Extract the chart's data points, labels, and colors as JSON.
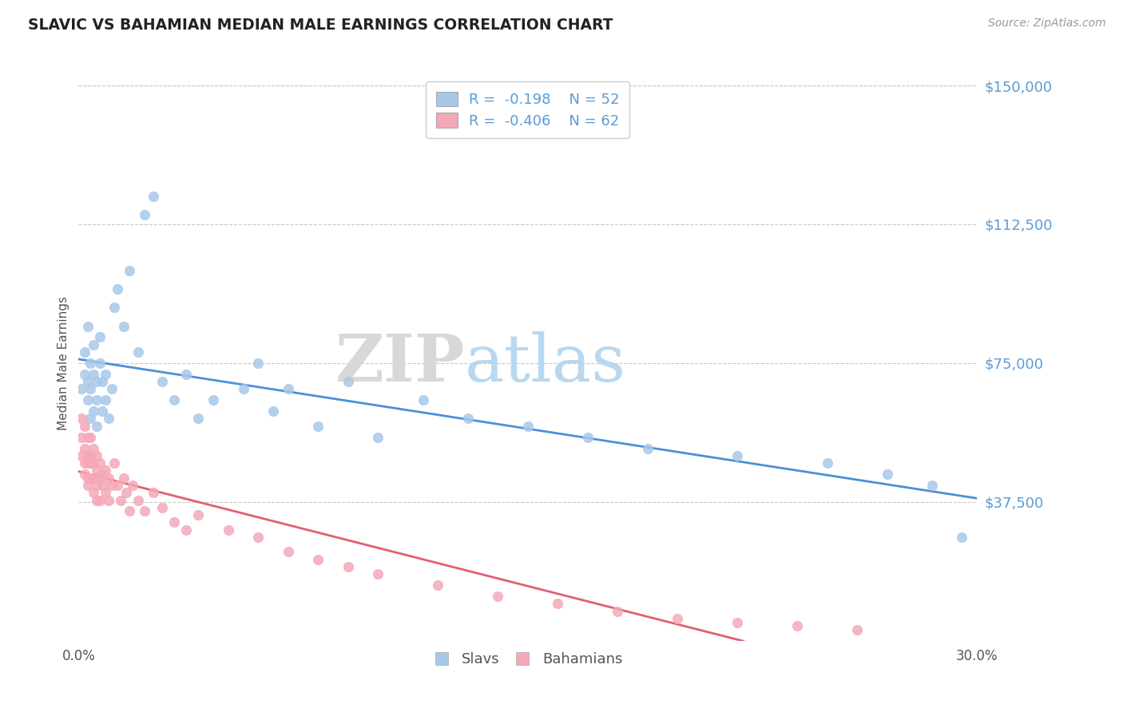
{
  "title": "SLAVIC VS BAHAMIAN MEDIAN MALE EARNINGS CORRELATION CHART",
  "source_text": "Source: ZipAtlas.com",
  "xlabel": "",
  "ylabel": "Median Male Earnings",
  "xlim": [
    0.0,
    0.3
  ],
  "ylim": [
    0,
    150000
  ],
  "yticks": [
    37500,
    75000,
    112500,
    150000
  ],
  "ytick_labels": [
    "$37,500",
    "$75,000",
    "$112,500",
    "$150,000"
  ],
  "xticks": [
    0.0,
    0.3
  ],
  "xtick_labels": [
    "0.0%",
    "30.0%"
  ],
  "slavs_R": -0.198,
  "slavs_N": 52,
  "bahamians_R": -0.406,
  "bahamians_N": 62,
  "slavs_color": "#a8c8e8",
  "bahamians_color": "#f4a8b8",
  "slavs_line_color": "#4a90d9",
  "bahamians_line_color": "#e06070",
  "background_color": "#ffffff",
  "grid_color": "#c8c8c8",
  "title_color": "#222222",
  "axis_label_color": "#555555",
  "tick_label_color": "#5b9bd5",
  "watermark_zip_color": "#d8d8d8",
  "watermark_atlas_color": "#b8d8f0",
  "legend_R_color": "#5b9bd5",
  "slavs_x": [
    0.001,
    0.002,
    0.002,
    0.003,
    0.003,
    0.003,
    0.004,
    0.004,
    0.004,
    0.005,
    0.005,
    0.005,
    0.006,
    0.006,
    0.006,
    0.007,
    0.007,
    0.008,
    0.008,
    0.009,
    0.009,
    0.01,
    0.011,
    0.012,
    0.013,
    0.015,
    0.017,
    0.02,
    0.022,
    0.025,
    0.028,
    0.032,
    0.036,
    0.04,
    0.045,
    0.055,
    0.06,
    0.065,
    0.07,
    0.08,
    0.09,
    0.1,
    0.115,
    0.13,
    0.15,
    0.17,
    0.19,
    0.22,
    0.25,
    0.27,
    0.285,
    0.295
  ],
  "slavs_y": [
    68000,
    72000,
    78000,
    65000,
    70000,
    85000,
    60000,
    68000,
    75000,
    62000,
    72000,
    80000,
    65000,
    70000,
    58000,
    75000,
    82000,
    62000,
    70000,
    65000,
    72000,
    60000,
    68000,
    90000,
    95000,
    85000,
    100000,
    78000,
    115000,
    120000,
    70000,
    65000,
    72000,
    60000,
    65000,
    68000,
    75000,
    62000,
    68000,
    58000,
    70000,
    55000,
    65000,
    60000,
    58000,
    55000,
    52000,
    50000,
    48000,
    45000,
    42000,
    28000
  ],
  "bahamians_x": [
    0.001,
    0.001,
    0.001,
    0.002,
    0.002,
    0.002,
    0.002,
    0.003,
    0.003,
    0.003,
    0.003,
    0.003,
    0.004,
    0.004,
    0.004,
    0.004,
    0.005,
    0.005,
    0.005,
    0.005,
    0.006,
    0.006,
    0.006,
    0.006,
    0.007,
    0.007,
    0.007,
    0.008,
    0.008,
    0.009,
    0.009,
    0.01,
    0.01,
    0.011,
    0.012,
    0.013,
    0.014,
    0.015,
    0.016,
    0.017,
    0.018,
    0.02,
    0.022,
    0.025,
    0.028,
    0.032,
    0.036,
    0.04,
    0.05,
    0.06,
    0.07,
    0.08,
    0.09,
    0.1,
    0.12,
    0.14,
    0.16,
    0.18,
    0.2,
    0.22,
    0.24,
    0.26
  ],
  "bahamians_y": [
    60000,
    55000,
    50000,
    58000,
    52000,
    48000,
    45000,
    55000,
    50000,
    48000,
    44000,
    42000,
    55000,
    50000,
    48000,
    44000,
    52000,
    48000,
    44000,
    40000,
    50000,
    46000,
    42000,
    38000,
    48000,
    44000,
    38000,
    45000,
    42000,
    46000,
    40000,
    44000,
    38000,
    42000,
    48000,
    42000,
    38000,
    44000,
    40000,
    35000,
    42000,
    38000,
    35000,
    40000,
    36000,
    32000,
    30000,
    34000,
    30000,
    28000,
    24000,
    22000,
    20000,
    18000,
    15000,
    12000,
    10000,
    8000,
    6000,
    5000,
    4000,
    3000
  ]
}
